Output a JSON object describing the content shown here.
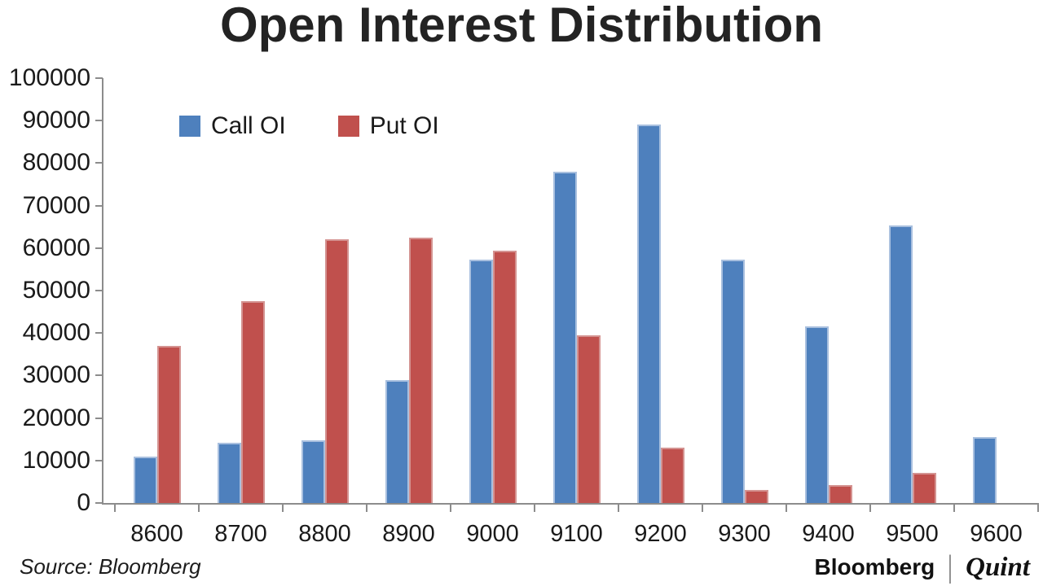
{
  "title": "Open Interest Distribution",
  "source_text": "Source: Bloomberg",
  "branding": {
    "primary": "Bloomberg",
    "separator": "|",
    "secondary": "Quint"
  },
  "chart_data": {
    "type": "bar",
    "title": "Open Interest Distribution",
    "categories": [
      "8600",
      "8700",
      "8800",
      "8900",
      "9000",
      "9100",
      "9200",
      "9300",
      "9400",
      "9500",
      "9600"
    ],
    "series": [
      {
        "name": "Call OI",
        "color": "#4E80BD",
        "edge": "#A9C0DF",
        "values": [
          11000,
          14200,
          14800,
          29000,
          57200,
          78000,
          89000,
          57300,
          41500,
          65300,
          15500
        ]
      },
      {
        "name": "Put OI",
        "color": "#C0504D",
        "edge": "#D49391",
        "values": [
          37000,
          47500,
          62000,
          62500,
          59300,
          39500,
          13100,
          3100,
          4300,
          7100,
          0
        ]
      }
    ],
    "ylim": [
      0,
      100000
    ],
    "ytick_step": 10000,
    "xlabel": "",
    "ylabel": "",
    "grid": false,
    "legend_position": "top-left-inside",
    "axis_color": "#8c8c8c"
  }
}
